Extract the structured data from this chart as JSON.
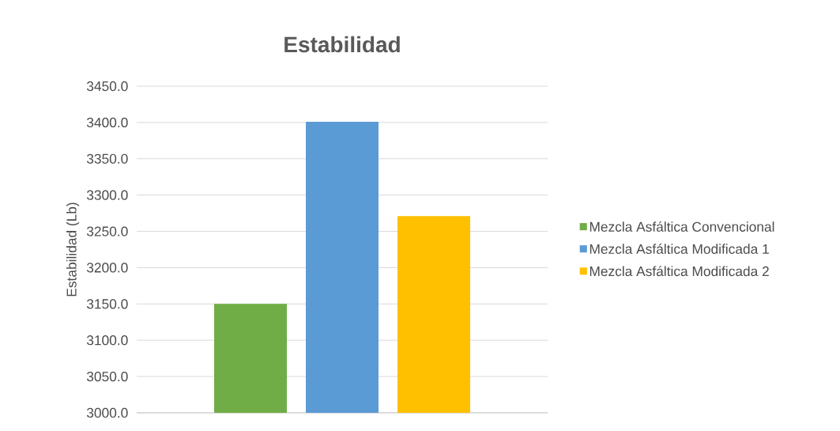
{
  "chart_data": {
    "type": "bar",
    "title": "Estabilidad",
    "ylabel": "Estabilidad (Lb)",
    "categories": [
      null
    ],
    "series": [
      {
        "name": "Mezcla Asfáltica Convencional",
        "color": "#70ad47",
        "values": [
          3150
        ]
      },
      {
        "name": "Mezcla Asfáltica Modificada 1",
        "color": "#5b9bd5",
        "values": [
          3401
        ]
      },
      {
        "name": "Mezcla Asfáltica Modificada 2",
        "color": "#ffc000",
        "values": [
          3271
        ]
      }
    ],
    "ylim": [
      3000,
      3450
    ],
    "yticks": [
      {
        "value": 3000,
        "label": "3000.0"
      },
      {
        "value": 3050,
        "label": "3050.0"
      },
      {
        "value": 3100,
        "label": "3100.0"
      },
      {
        "value": 3150,
        "label": "3150.0"
      },
      {
        "value": 3200,
        "label": "3200.0"
      },
      {
        "value": 3250,
        "label": "3250.0"
      },
      {
        "value": 3300,
        "label": "3300.0"
      },
      {
        "value": 3350,
        "label": "3350.0"
      },
      {
        "value": 3400,
        "label": "3400.0"
      },
      {
        "value": 3450,
        "label": "3450.0"
      }
    ],
    "grid": "y",
    "legend": "right"
  }
}
